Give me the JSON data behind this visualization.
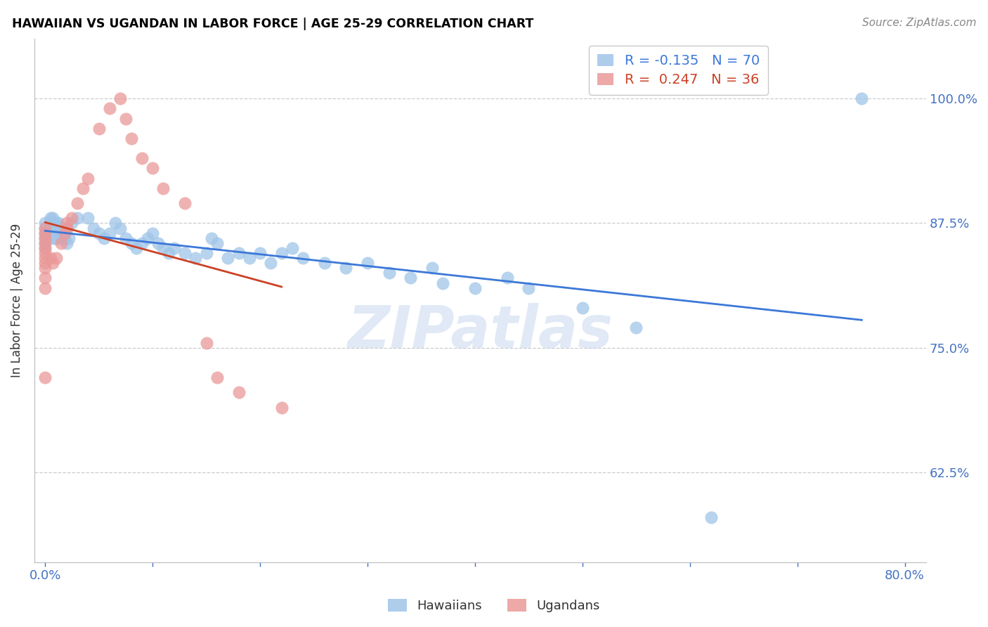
{
  "title": "HAWAIIAN VS UGANDAN IN LABOR FORCE | AGE 25-29 CORRELATION CHART",
  "source": "Source: ZipAtlas.com",
  "ylabel": "In Labor Force | Age 25-29",
  "watermark": "ZIPatlas",
  "legend_hawaiian": {
    "R": -0.135,
    "N": 70,
    "label": "Hawaiians"
  },
  "legend_ugandan": {
    "R": 0.247,
    "N": 36,
    "label": "Ugandans"
  },
  "hawaiian_color": "#9fc5e8",
  "ugandan_color": "#ea9999",
  "trend_hawaiian_color": "#3c78d8",
  "trend_ugandan_color": "#cc4125",
  "axis_label_color": "#4472c4",
  "title_color": "#000000",
  "xlim": [
    -0.01,
    0.82
  ],
  "ylim": [
    0.535,
    1.06
  ],
  "hawaiian_x": [
    0.0,
    0.0,
    0.0,
    0.0,
    0.0,
    0.0,
    0.005,
    0.005,
    0.007,
    0.007,
    0.008,
    0.008,
    0.01,
    0.01,
    0.01,
    0.012,
    0.013,
    0.015,
    0.015,
    0.016,
    0.018,
    0.02,
    0.02,
    0.022,
    0.025,
    0.03,
    0.04,
    0.045,
    0.05,
    0.055,
    0.06,
    0.065,
    0.07,
    0.075,
    0.08,
    0.085,
    0.09,
    0.095,
    0.1,
    0.105,
    0.11,
    0.115,
    0.12,
    0.13,
    0.14,
    0.15,
    0.155,
    0.16,
    0.17,
    0.18,
    0.19,
    0.2,
    0.21,
    0.22,
    0.23,
    0.24,
    0.26,
    0.28,
    0.3,
    0.32,
    0.34,
    0.36,
    0.37,
    0.4,
    0.43,
    0.45,
    0.5,
    0.55,
    0.62,
    0.76
  ],
  "hawaiian_y": [
    0.875,
    0.87,
    0.865,
    0.86,
    0.855,
    0.85,
    0.88,
    0.875,
    0.88,
    0.875,
    0.87,
    0.86,
    0.875,
    0.87,
    0.86,
    0.875,
    0.865,
    0.865,
    0.87,
    0.86,
    0.86,
    0.87,
    0.855,
    0.86,
    0.875,
    0.88,
    0.88,
    0.87,
    0.865,
    0.86,
    0.865,
    0.875,
    0.87,
    0.86,
    0.855,
    0.85,
    0.855,
    0.86,
    0.865,
    0.855,
    0.85,
    0.845,
    0.85,
    0.845,
    0.84,
    0.845,
    0.86,
    0.855,
    0.84,
    0.845,
    0.84,
    0.845,
    0.835,
    0.845,
    0.85,
    0.84,
    0.835,
    0.83,
    0.835,
    0.825,
    0.82,
    0.83,
    0.815,
    0.81,
    0.82,
    0.81,
    0.79,
    0.77,
    0.58,
    1.0
  ],
  "ugandan_x": [
    0.0,
    0.0,
    0.0,
    0.0,
    0.0,
    0.0,
    0.0,
    0.0,
    0.0,
    0.0,
    0.0,
    0.0,
    0.005,
    0.007,
    0.01,
    0.015,
    0.018,
    0.02,
    0.02,
    0.025,
    0.03,
    0.035,
    0.04,
    0.05,
    0.06,
    0.07,
    0.075,
    0.08,
    0.09,
    0.1,
    0.11,
    0.13,
    0.15,
    0.16,
    0.18,
    0.22
  ],
  "ugandan_y": [
    0.87,
    0.865,
    0.86,
    0.855,
    0.85,
    0.845,
    0.84,
    0.835,
    0.83,
    0.82,
    0.81,
    0.72,
    0.84,
    0.835,
    0.84,
    0.855,
    0.865,
    0.875,
    0.87,
    0.88,
    0.895,
    0.91,
    0.92,
    0.97,
    0.99,
    1.0,
    0.98,
    0.96,
    0.94,
    0.93,
    0.91,
    0.895,
    0.755,
    0.72,
    0.705,
    0.69
  ]
}
